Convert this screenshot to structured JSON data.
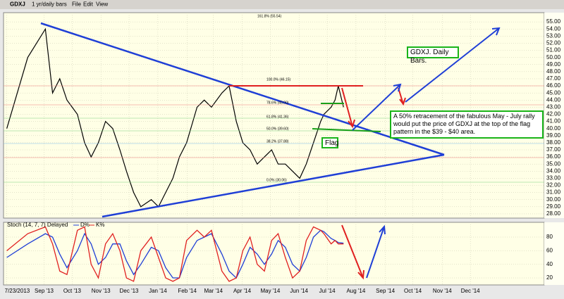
{
  "toolbar": {
    "symbol": "GDXJ",
    "period": "1 yr/daily bars",
    "menu": [
      "File",
      "Edit",
      "View"
    ]
  },
  "chart_data": [
    {
      "type": "line",
      "color": "#000000",
      "x": [
        0,
        3.2,
        5.9,
        7.0,
        8.1,
        9.2,
        10.8,
        11.9,
        12.9,
        14.0,
        15.1,
        16.2,
        17.3,
        18.3,
        19.4,
        20.5,
        22.1,
        23.2,
        24.3,
        25.4,
        26.4,
        27.5,
        29.1,
        30.2,
        31.3,
        32.9,
        34.0,
        35.1,
        36.1,
        37.2,
        38.3,
        39.4,
        40.5,
        41.5,
        42.6,
        43.7,
        44.8,
        45.8,
        46.9,
        48.0,
        48.5,
        49.6,
        50.2,
        50.7,
        51.5
      ],
      "values": [
        40,
        50,
        54,
        45,
        47,
        44,
        42,
        38,
        36,
        38,
        41,
        40,
        37,
        34,
        31,
        29,
        30,
        29,
        31,
        33,
        36,
        38,
        43,
        44,
        43,
        45,
        46,
        41,
        38,
        37,
        35,
        36,
        37,
        35,
        35,
        34,
        33,
        35,
        38,
        41,
        42,
        43,
        44,
        46,
        43
      ],
      "xlim": [
        -0.5,
        82.2
      ],
      "ylim": [
        27.4,
        56.3
      ],
      "yticks": [
        {
          "value": 28,
          "label": "28.00"
        },
        {
          "value": 29,
          "label": "29.00"
        },
        {
          "value": 30,
          "label": "30.00"
        },
        {
          "value": 31,
          "label": "31.00"
        },
        {
          "value": 32,
          "label": "32.00"
        },
        {
          "value": 33,
          "label": "33.00"
        },
        {
          "value": 34,
          "label": "34.00"
        },
        {
          "value": 35,
          "label": "35.00"
        },
        {
          "value": 36,
          "label": "36.00"
        },
        {
          "value": 37,
          "label": "37.00"
        },
        {
          "value": 38,
          "label": "38.00"
        },
        {
          "value": 39,
          "label": "39.00"
        },
        {
          "value": 40,
          "label": "40.00"
        },
        {
          "value": 41,
          "label": "41.00"
        },
        {
          "value": 42,
          "label": "42.00"
        },
        {
          "value": 43,
          "label": "43.00"
        },
        {
          "value": 44,
          "label": "44.00"
        },
        {
          "value": 45,
          "label": "45.00"
        },
        {
          "value": 46,
          "label": "46.00"
        },
        {
          "value": 47,
          "label": "47.00"
        },
        {
          "value": 48,
          "label": "48.00"
        },
        {
          "value": 49,
          "label": "49.00"
        },
        {
          "value": 50,
          "label": "50.00"
        },
        {
          "value": 51,
          "label": "51.00"
        },
        {
          "value": 52,
          "label": "52.00"
        },
        {
          "value": 53,
          "label": "53.00"
        },
        {
          "value": 54,
          "label": "54.00"
        },
        {
          "value": 55,
          "label": "55.00"
        }
      ],
      "grid": true,
      "fib_labels": [
        "161.8% (55.54)",
        "100.0% (46.15)",
        "78.6% (43.00)",
        "61.8% (41.36)",
        "50.0% (39.60)",
        "38.2% (37.88)",
        "0.0% (30.06)"
      ],
      "notes": [
        "GDXJ. Daily Bars.",
        "A 50% retracement of the fabulous May - July rally would put the price of GDXJ at the top of the flag pattern in the $39 - $40 area.",
        "Flag"
      ]
    },
    {
      "type": "line",
      "title": "Stoch (14, 7, 7) Delayed",
      "x": [
        0,
        3.2,
        5.9,
        7.0,
        8.1,
        9.2,
        10.8,
        11.9,
        12.9,
        14.0,
        15.1,
        16.2,
        17.3,
        18.3,
        19.4,
        20.5,
        22.1,
        23.2,
        24.3,
        25.4,
        26.4,
        27.5,
        29.1,
        30.2,
        31.3,
        32.9,
        34.0,
        35.1,
        36.1,
        37.2,
        38.3,
        39.4,
        40.5,
        41.5,
        42.6,
        43.7,
        44.8,
        45.8,
        46.9,
        48.0,
        48.5,
        49.6,
        50.2,
        50.7,
        51.5
      ],
      "series": [
        {
          "name": "D%",
          "color": "#1f3fd6",
          "values": [
            50,
            70,
            85,
            80,
            55,
            35,
            60,
            85,
            70,
            40,
            50,
            70,
            70,
            45,
            25,
            40,
            65,
            60,
            35,
            20,
            20,
            50,
            75,
            80,
            85,
            55,
            30,
            20,
            40,
            65,
            55,
            40,
            55,
            75,
            65,
            40,
            30,
            50,
            80,
            90,
            88,
            78,
            75,
            72,
            71
          ]
        },
        {
          "name": "K%",
          "color": "#e02020",
          "values": [
            60,
            85,
            95,
            70,
            30,
            25,
            90,
            95,
            40,
            20,
            70,
            85,
            60,
            20,
            15,
            60,
            80,
            50,
            20,
            15,
            20,
            75,
            90,
            80,
            90,
            30,
            15,
            20,
            60,
            80,
            40,
            30,
            75,
            85,
            50,
            20,
            30,
            75,
            95,
            90,
            85,
            70,
            75,
            70,
            70
          ]
        }
      ],
      "xlim": [
        -0.5,
        82.2
      ],
      "ylim": [
        9.7,
        101.7
      ],
      "yticks": [
        20,
        40,
        60,
        80
      ],
      "grid": true,
      "xticks": [
        {
          "value": 0,
          "label": "7/23/2013"
        },
        {
          "value": 5.7,
          "label": "Sep '13"
        },
        {
          "value": 10,
          "label": "Oct '13"
        },
        {
          "value": 14.4,
          "label": "Nov '13"
        },
        {
          "value": 18.7,
          "label": "Dec '13"
        },
        {
          "value": 23.1,
          "label": "Jan '14"
        },
        {
          "value": 27.6,
          "label": "Feb '14"
        },
        {
          "value": 31.6,
          "label": "Mar '14"
        },
        {
          "value": 36,
          "label": "Apr '14"
        },
        {
          "value": 40.3,
          "label": "May '14"
        },
        {
          "value": 44.7,
          "label": "Jun '14"
        },
        {
          "value": 49,
          "label": "Jul '14"
        },
        {
          "value": 53.4,
          "label": "Aug '14"
        },
        {
          "value": 57.9,
          "label": "Sep '14"
        },
        {
          "value": 62.1,
          "label": "Oct '14"
        },
        {
          "value": 66.6,
          "label": "Nov '14"
        },
        {
          "value": 70.9,
          "label": "Dec '14"
        }
      ]
    }
  ]
}
